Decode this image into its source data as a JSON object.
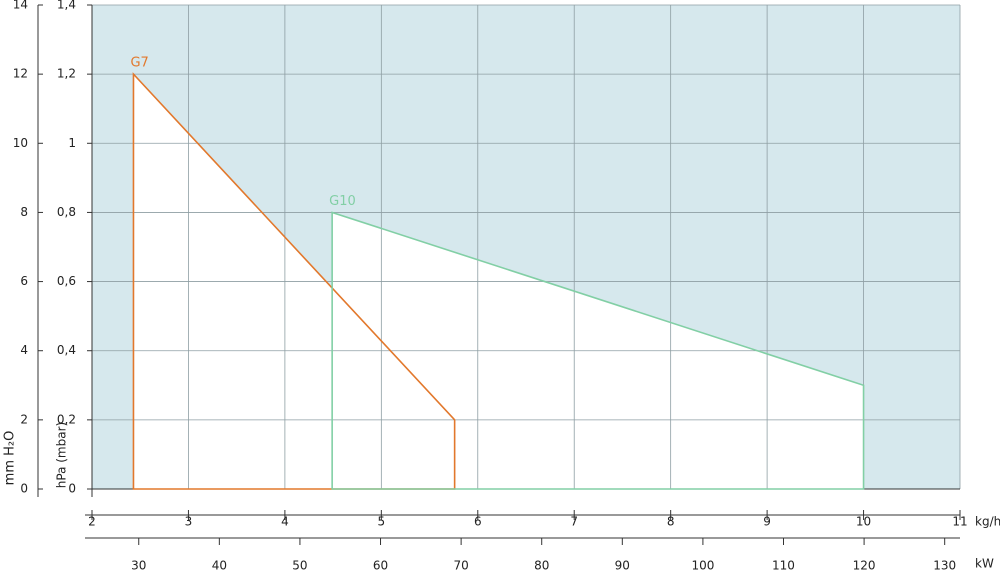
{
  "chart_data": {
    "type": "line",
    "x_label": "kg/h",
    "x2_label": "kW",
    "y_label": "hPa (mbar)",
    "y2_label": "mm H₂O",
    "xlim": [
      2,
      11
    ],
    "xticks": [
      2,
      3,
      4,
      5,
      6,
      7,
      8,
      9,
      10,
      11
    ],
    "x2lim": [
      24.2,
      131.9
    ],
    "x2ticks": [
      30,
      40,
      50,
      60,
      70,
      80,
      90,
      100,
      110,
      120,
      130
    ],
    "ylim": [
      0,
      1.4
    ],
    "yticks": [
      0,
      {
        "value": 0.2,
        "label": "0,2"
      },
      {
        "value": 0.4,
        "label": "0,4"
      },
      {
        "value": 0.6,
        "label": "0,6"
      },
      {
        "value": 0.8,
        "label": "0,8"
      },
      1,
      {
        "value": 1.2,
        "label": "1,2"
      },
      {
        "value": 1.4,
        "label": "1,4"
      }
    ],
    "y2lim": [
      0,
      14
    ],
    "y2ticks": [
      0,
      2,
      4,
      6,
      8,
      10,
      12,
      14
    ],
    "grid": true,
    "background": "#d6e8ed",
    "series": [
      {
        "name": "G7",
        "color": "#e2782c",
        "x": [
          2.43,
          2.43,
          5.76,
          5.76
        ],
        "values": [
          0,
          1.2,
          0.2,
          0
        ]
      },
      {
        "name": "G10",
        "color": "#82cfa5",
        "x": [
          4.49,
          4.49,
          10.0,
          10.0
        ],
        "values": [
          0,
          0.8,
          0.3,
          0
        ]
      }
    ]
  }
}
